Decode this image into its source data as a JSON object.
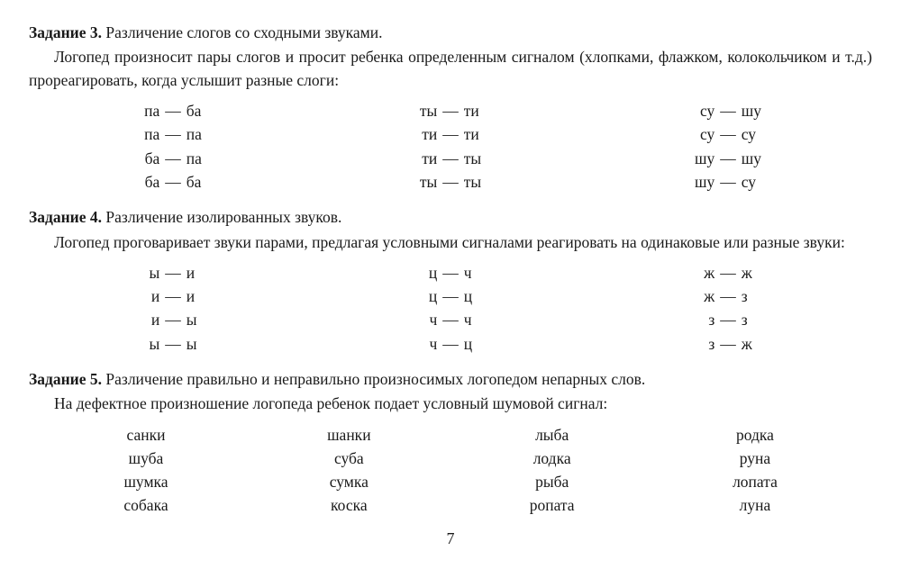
{
  "task3": {
    "label": "Задание 3.",
    "title": "Различение слогов со сходными звуками.",
    "paragraph": "Логопед произносит пары слогов и просит ребенка определенным сигналом (хлопками, флажком, колокольчиком и т.д.) прореагировать, когда услышит разные слоги:",
    "cols": [
      [
        [
          "па",
          "ба"
        ],
        [
          "па",
          "па"
        ],
        [
          "ба",
          "па"
        ],
        [
          "ба",
          "ба"
        ]
      ],
      [
        [
          "ты",
          "ти"
        ],
        [
          "ти",
          "ти"
        ],
        [
          "ти",
          "ты"
        ],
        [
          "ты",
          "ты"
        ]
      ],
      [
        [
          "су",
          "шу"
        ],
        [
          "су",
          "су"
        ],
        [
          "шу",
          "шу"
        ],
        [
          "шу",
          "су"
        ]
      ]
    ]
  },
  "task4": {
    "label": "Задание 4.",
    "title": "Различение изолированных звуков.",
    "paragraph": "Логопед проговаривает звуки парами, предлагая условными сигналами реагировать на одинаковые или разные звуки:",
    "cols": [
      [
        [
          "ы",
          "и"
        ],
        [
          "и",
          "и"
        ],
        [
          "и",
          "ы"
        ],
        [
          "ы",
          "ы"
        ]
      ],
      [
        [
          "ц",
          "ч"
        ],
        [
          "ц",
          "ц"
        ],
        [
          "ч",
          "ч"
        ],
        [
          "ч",
          "ц"
        ]
      ],
      [
        [
          "ж",
          "ж"
        ],
        [
          "ж",
          "з"
        ],
        [
          "з",
          "з"
        ],
        [
          "з",
          "ж"
        ]
      ]
    ]
  },
  "task5": {
    "label": "Задание 5.",
    "title": "Различение правильно и неправильно произносимых логопедом непарных слов.",
    "paragraph": "На дефектное произношение логопеда ребенок подает условный шумовой сигнал:",
    "cols": [
      [
        "санки",
        "шуба",
        "шумка",
        "собака"
      ],
      [
        "шанки",
        "суба",
        "сумка",
        "коска"
      ],
      [
        "лыба",
        "лодка",
        "рыба",
        "ропата"
      ],
      [
        "родка",
        "руна",
        "лопата",
        "луна"
      ]
    ]
  },
  "dash": "—",
  "pageNumber": "7"
}
